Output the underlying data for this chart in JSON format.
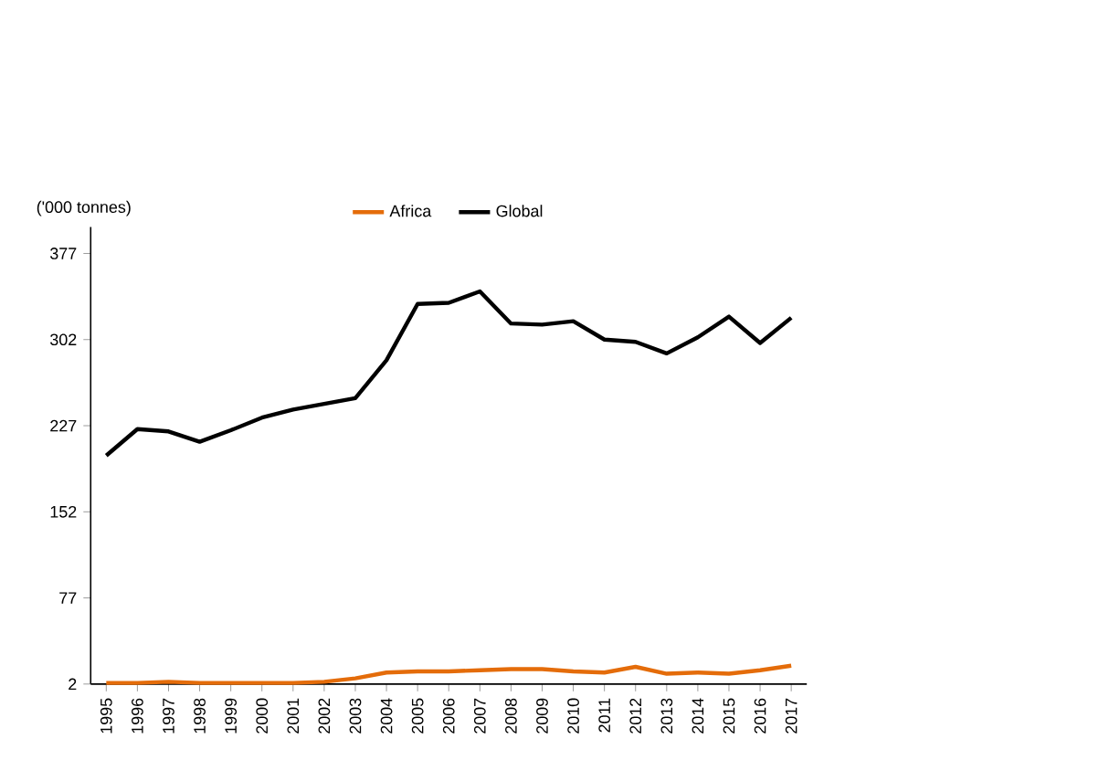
{
  "chart_data": {
    "type": "line",
    "ylabel": "('000 tonnes)",
    "categories": [
      "1995",
      "1996",
      "1997",
      "1998",
      "1999",
      "2000",
      "2001",
      "2002",
      "2003",
      "2004",
      "2005",
      "2006",
      "2007",
      "2008",
      "2009",
      "2010",
      "2011",
      "2012",
      "2013",
      "2014",
      "2015",
      "2016",
      "2017"
    ],
    "series": [
      {
        "name": "Africa",
        "color": "#e46c0a",
        "values": [
          3,
          3,
          4,
          3,
          3,
          3,
          3,
          4,
          7,
          12,
          13,
          13,
          14,
          15,
          15,
          13,
          12,
          17,
          11,
          12,
          11,
          14,
          18
        ]
      },
      {
        "name": "Global",
        "color": "#000000",
        "values": [
          201,
          224,
          222,
          213,
          223,
          234,
          241,
          246,
          251,
          284,
          333,
          334,
          344,
          316,
          315,
          318,
          302,
          300,
          290,
          304,
          322,
          299,
          321
        ]
      }
    ],
    "ylim": [
      2,
      400
    ],
    "yticks": [
      2,
      77,
      152,
      227,
      302,
      377
    ],
    "grid": false,
    "legend": "top",
    "marker": "none",
    "line_style": "solid"
  }
}
